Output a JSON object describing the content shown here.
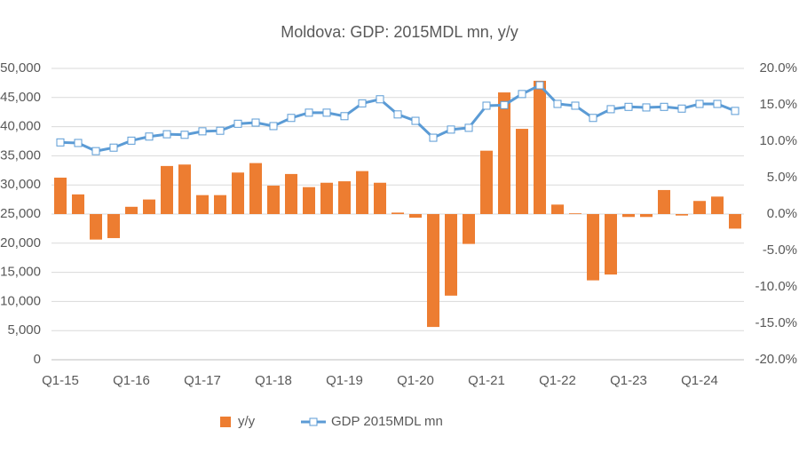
{
  "chart_data": {
    "type": "bar",
    "title": "Moldova: GDP: 2015MDL mn, y/y",
    "categories": [
      "Q1-15",
      null,
      null,
      null,
      "Q1-16",
      null,
      null,
      null,
      "Q1-17",
      null,
      null,
      null,
      "Q1-18",
      null,
      null,
      null,
      "Q1-19",
      null,
      null,
      null,
      "Q1-20",
      null,
      null,
      null,
      "Q1-21",
      null,
      null,
      null,
      "Q1-22",
      null,
      null,
      null,
      "Q1-23",
      null,
      null,
      null,
      "Q1-24",
      null,
      null
    ],
    "series": [
      {
        "name": "y/y",
        "type": "bar",
        "axis": "y2",
        "color": "#ed7d31",
        "values": [
          5.0,
          2.7,
          -3.5,
          -3.3,
          1.0,
          2.0,
          6.6,
          6.8,
          2.6,
          2.6,
          5.7,
          7.0,
          3.9,
          5.5,
          3.7,
          4.3,
          4.5,
          5.9,
          4.3,
          0.2,
          -0.5,
          -15.5,
          -11.2,
          -4.1,
          8.7,
          16.7,
          11.7,
          18.3,
          1.3,
          0.1,
          -9.1,
          -8.3,
          -0.4,
          -0.4,
          3.3,
          -0.2,
          1.8,
          2.4,
          -2.0
        ]
      },
      {
        "name": "GDP 2015MDL mn",
        "type": "line",
        "color": "#5b9bd5",
        "values": [
          37300,
          37200,
          35800,
          36400,
          37600,
          38300,
          38700,
          38600,
          39200,
          39300,
          40500,
          40700,
          40100,
          41500,
          42400,
          42400,
          41800,
          44000,
          44700,
          42100,
          41000,
          38100,
          39500,
          39800,
          43600,
          43700,
          45600,
          47100,
          43900,
          43600,
          41500,
          43000,
          43400,
          43300,
          43400,
          43100,
          43900,
          43900,
          42700
        ]
      }
    ],
    "ylim": [
      0,
      50000
    ],
    "yticks": [
      0,
      {
        "value": 5000,
        "label": "5,000"
      },
      {
        "value": 10000,
        "label": "10,000"
      },
      {
        "value": 15000,
        "label": "15,000"
      },
      {
        "value": 20000,
        "label": "20,000"
      },
      {
        "value": 25000,
        "label": "25,000"
      },
      {
        "value": 30000,
        "label": "30,000"
      },
      {
        "value": 35000,
        "label": "35,000"
      },
      {
        "value": 40000,
        "label": "40,000"
      },
      {
        "value": 45000,
        "label": "45,000"
      },
      {
        "value": 50000,
        "label": "50,000"
      }
    ],
    "y2lim": [
      -20,
      20
    ],
    "y2ticks": [
      {
        "value": -20,
        "label": "-20.0%"
      },
      {
        "value": -15,
        "label": "-15.0%"
      },
      {
        "value": -10,
        "label": "-10.0%"
      },
      {
        "value": -5,
        "label": "-5.0%"
      },
      {
        "value": 0,
        "label": "0.0%"
      },
      {
        "value": 5,
        "label": "5.0%"
      },
      {
        "value": 10,
        "label": "10.0%"
      },
      {
        "value": 15,
        "label": "15.0%"
      },
      {
        "value": 20,
        "label": "20.0%"
      }
    ],
    "grid": true
  }
}
